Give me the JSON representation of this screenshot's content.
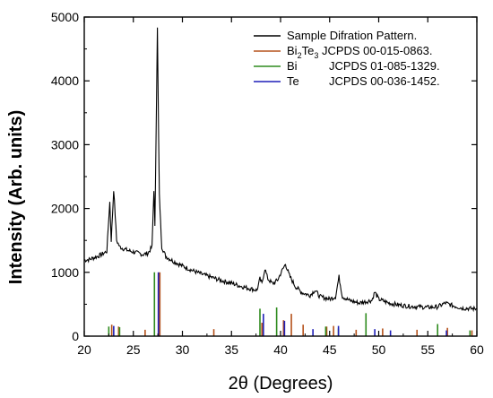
{
  "chart_data": {
    "type": "line",
    "xlabel": "2θ (Degrees)",
    "ylabel": "Intensity (Arb. units)",
    "xlim": [
      20,
      60
    ],
    "ylim": [
      0,
      5000
    ],
    "x_ticks": [
      "20",
      "25",
      "30",
      "35",
      "40",
      "45",
      "50",
      "55",
      "60"
    ],
    "y_ticks": [
      "0",
      "1000",
      "2000",
      "3000",
      "4000",
      "5000"
    ],
    "grid": false,
    "legend_position": "top-right",
    "legend": [
      {
        "name": "Sample Difration Pattern.",
        "color": "#000000"
      },
      {
        "name_main": "Bi",
        "name_sub": "2",
        "name_mid": "Te",
        "name_sub2": "3",
        "card": "JCPDS 00-015-0863.",
        "color": "#b5521b"
      },
      {
        "name": "Bi",
        "card": "JCPDS 01-085-1329.",
        "color": "#2e8b1e"
      },
      {
        "name": "Te",
        "card": "JCPDS 00-036-1452.",
        "color": "#1f1fb8"
      }
    ],
    "series": [
      {
        "name": "Sample Difration Pattern.",
        "color": "#000000",
        "points": [
          [
            20,
            1190
          ],
          [
            20.5,
            1200
          ],
          [
            21,
            1230
          ],
          [
            21.5,
            1260
          ],
          [
            22,
            1300
          ],
          [
            22.3,
            1330
          ],
          [
            22.6,
            2100
          ],
          [
            22.75,
            1500
          ],
          [
            23.0,
            2300
          ],
          [
            23.3,
            1500
          ],
          [
            23.6,
            1400
          ],
          [
            24,
            1370
          ],
          [
            24.5,
            1340
          ],
          [
            25,
            1320
          ],
          [
            25.5,
            1300
          ],
          [
            26,
            1280
          ],
          [
            26.5,
            1300
          ],
          [
            26.9,
            1400
          ],
          [
            27.1,
            2300
          ],
          [
            27.2,
            1700
          ],
          [
            27.45,
            4820
          ],
          [
            27.65,
            2200
          ],
          [
            27.9,
            1400
          ],
          [
            28.3,
            1250
          ],
          [
            29,
            1180
          ],
          [
            30,
            1100
          ],
          [
            31,
            1030
          ],
          [
            32,
            970
          ],
          [
            33,
            920
          ],
          [
            34,
            870
          ],
          [
            35,
            830
          ],
          [
            36,
            780
          ],
          [
            37,
            740
          ],
          [
            37.6,
            720
          ],
          [
            37.9,
            900
          ],
          [
            38.1,
            820
          ],
          [
            38.4,
            1060
          ],
          [
            38.7,
            900
          ],
          [
            39.2,
            820
          ],
          [
            39.7,
            880
          ],
          [
            40.2,
            1040
          ],
          [
            40.5,
            1130
          ],
          [
            40.9,
            950
          ],
          [
            41.5,
            780
          ],
          [
            42.2,
            680
          ],
          [
            43.0,
            640
          ],
          [
            43.5,
            720
          ],
          [
            44.0,
            620
          ],
          [
            45.0,
            580
          ],
          [
            45.6,
            620
          ],
          [
            45.95,
            930
          ],
          [
            46.3,
            620
          ],
          [
            47,
            560
          ],
          [
            48,
            520
          ],
          [
            49.3,
            560
          ],
          [
            49.6,
            690
          ],
          [
            50.0,
            580
          ],
          [
            51,
            520
          ],
          [
            52,
            490
          ],
          [
            53,
            470
          ],
          [
            54,
            460
          ],
          [
            55,
            450
          ],
          [
            56,
            460
          ],
          [
            56.8,
            520
          ],
          [
            57.5,
            480
          ],
          [
            58.5,
            440
          ],
          [
            59.5,
            430
          ],
          [
            60,
            430
          ]
        ]
      }
    ],
    "reference_lines": [
      {
        "set": "Bi2Te3",
        "color": "#b5521b",
        "peaks": [
          [
            22.8,
            180
          ],
          [
            23.5,
            150
          ],
          [
            26.2,
            100
          ],
          [
            27.7,
            1000
          ],
          [
            33.2,
            110
          ],
          [
            38.1,
            210
          ],
          [
            40.3,
            250
          ],
          [
            41.1,
            350
          ],
          [
            42.3,
            180
          ],
          [
            44.7,
            150
          ],
          [
            45.4,
            160
          ],
          [
            47.7,
            100
          ],
          [
            50.4,
            120
          ],
          [
            53.9,
            100
          ],
          [
            57.0,
            130
          ],
          [
            59.5,
            90
          ]
        ]
      },
      {
        "set": "Bi",
        "color": "#2e8b1e",
        "peaks": [
          [
            22.5,
            150
          ],
          [
            23.6,
            140
          ],
          [
            27.15,
            1000
          ],
          [
            37.9,
            430
          ],
          [
            39.6,
            450
          ],
          [
            44.6,
            150
          ],
          [
            45.9,
            120
          ],
          [
            48.7,
            360
          ],
          [
            56.0,
            190
          ],
          [
            59.3,
            90
          ]
        ]
      },
      {
        "set": "Te",
        "color": "#1f1fb8",
        "peaks": [
          [
            23.0,
            160
          ],
          [
            27.55,
            1000
          ],
          [
            38.25,
            350
          ],
          [
            40.4,
            240
          ],
          [
            43.3,
            110
          ],
          [
            45.9,
            160
          ],
          [
            49.6,
            110
          ],
          [
            51.2,
            90
          ],
          [
            56.9,
            90
          ]
        ]
      }
    ]
  }
}
